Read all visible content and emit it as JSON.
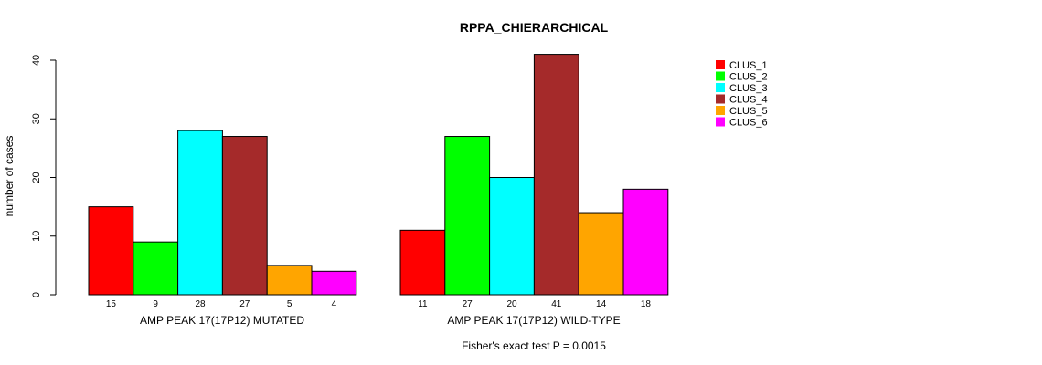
{
  "chart_data": {
    "type": "bar",
    "title": "RPPA_CHIERARCHICAL",
    "ylabel": "number of cases",
    "ylim": [
      0,
      40
    ],
    "yticks": [
      "0",
      "10",
      "20",
      "30",
      "40"
    ],
    "groups": [
      {
        "label": "AMP PEAK 17(17P12) MUTATED",
        "values": [
          15,
          9,
          28,
          27,
          5,
          4
        ],
        "count_labels": [
          "15",
          "9",
          "28",
          "27",
          "5",
          "4"
        ]
      },
      {
        "label": "AMP PEAK 17(17P12) WILD-TYPE",
        "values": [
          11,
          27,
          20,
          41,
          14,
          18
        ],
        "count_labels": [
          "11",
          "27",
          "20",
          "41",
          "14",
          "18"
        ]
      }
    ],
    "series": [
      {
        "name": "CLUS_1",
        "color": "#ff0000"
      },
      {
        "name": "CLUS_2",
        "color": "#00ff00"
      },
      {
        "name": "CLUS_3",
        "color": "#00ffff"
      },
      {
        "name": "CLUS_4",
        "color": "#a52a2a"
      },
      {
        "name": "CLUS_5",
        "color": "#ffa500"
      },
      {
        "name": "CLUS_6",
        "color": "#ff00ff"
      }
    ],
    "legend_position": "top-right",
    "footnote": "Fisher's exact test P = 0.0015"
  }
}
